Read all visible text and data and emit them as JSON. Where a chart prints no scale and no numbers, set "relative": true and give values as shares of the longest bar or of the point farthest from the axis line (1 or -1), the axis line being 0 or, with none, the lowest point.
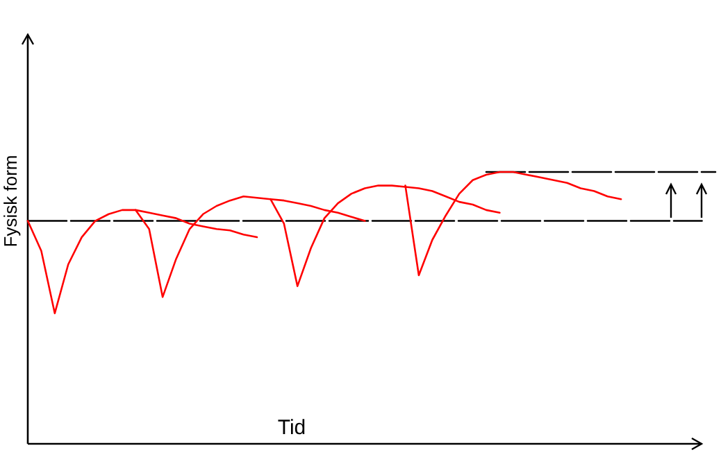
{
  "chart_data": {
    "type": "line",
    "xlabel": "Tid",
    "ylabel": "Fysisk form",
    "relative": true,
    "marker": "none",
    "categories": [
      null,
      null,
      null,
      null,
      null,
      null,
      null,
      null,
      null,
      null,
      null,
      null,
      null,
      null,
      null,
      null,
      null,
      null,
      null,
      null,
      null,
      null,
      null,
      null,
      null,
      null,
      null,
      null,
      null,
      null,
      null,
      null,
      null,
      null,
      null,
      null,
      null,
      null,
      null,
      null,
      null,
      null,
      null,
      null,
      null,
      null,
      null,
      null,
      null,
      null,
      null,
      null
    ],
    "series": [
      {
        "color": "#000000",
        "line_style": "dashed",
        "values": [
          0.82,
          0.82,
          0.82,
          0.82,
          0.82,
          0.82,
          0.82,
          0.82,
          0.82,
          0.82,
          0.82,
          0.82,
          0.82,
          0.82,
          0.82,
          0.82,
          0.82,
          0.82,
          0.82,
          0.82,
          0.82,
          0.82,
          0.82,
          0.82,
          0.82,
          0.82,
          0.82,
          0.82,
          0.82,
          0.82,
          0.82,
          0.82,
          0.82,
          0.82,
          0.82,
          0.82,
          0.82,
          0.82,
          0.82,
          0.82,
          0.82,
          0.82,
          0.82,
          0.82,
          0.82,
          0.82,
          0.82,
          0.82,
          0.82,
          0.82,
          0.82,
          null
        ]
      },
      {
        "color": "#000000",
        "line_style": "dashed",
        "values": [
          null,
          null,
          null,
          null,
          null,
          null,
          null,
          null,
          null,
          null,
          null,
          null,
          null,
          null,
          null,
          null,
          null,
          null,
          null,
          null,
          null,
          null,
          null,
          null,
          null,
          null,
          null,
          null,
          null,
          null,
          null,
          null,
          null,
          null,
          1.0,
          1.0,
          1.0,
          1.0,
          1.0,
          1.0,
          1.0,
          1.0,
          1.0,
          1.0,
          1.0,
          1.0,
          1.0,
          1.0,
          1.0,
          1.0,
          1.0,
          1.0
        ]
      },
      {
        "color": "#ff0000",
        "line_style": "solid",
        "values": [
          0.82,
          0.71,
          0.48,
          0.66,
          0.76,
          0.82,
          0.845,
          0.86,
          0.86,
          0.85,
          0.84,
          0.83,
          0.81,
          0.8,
          0.79,
          0.785,
          0.77,
          0.76,
          null,
          null,
          null,
          null,
          null,
          null,
          null,
          null,
          null,
          null,
          null,
          null,
          null,
          null,
          null,
          null,
          null,
          null,
          null,
          null,
          null,
          null,
          null,
          null,
          null,
          null,
          null,
          null,
          null,
          null,
          null,
          null,
          null,
          null
        ]
      },
      {
        "color": "#ff0000",
        "line_style": "solid",
        "values": [
          null,
          null,
          null,
          null,
          null,
          null,
          null,
          null,
          0.86,
          0.79,
          0.54,
          0.68,
          0.79,
          0.845,
          0.875,
          0.895,
          0.91,
          0.905,
          0.9,
          0.895,
          0.885,
          0.875,
          0.86,
          0.85,
          0.835,
          0.82,
          null,
          null,
          null,
          null,
          null,
          null,
          null,
          null,
          null,
          null,
          null,
          null,
          null,
          null,
          null,
          null,
          null,
          null,
          null,
          null,
          null,
          null,
          null,
          null,
          null,
          null
        ]
      },
      {
        "color": "#ff0000",
        "line_style": "solid",
        "values": [
          null,
          null,
          null,
          null,
          null,
          null,
          null,
          null,
          null,
          null,
          null,
          null,
          null,
          null,
          null,
          null,
          null,
          null,
          0.9,
          0.81,
          0.58,
          0.72,
          0.83,
          0.885,
          0.92,
          0.94,
          0.95,
          0.95,
          0.945,
          0.94,
          0.93,
          0.91,
          0.89,
          0.88,
          0.86,
          0.85,
          null,
          null,
          null,
          null,
          null,
          null,
          null,
          null,
          null,
          null,
          null,
          null,
          null,
          null,
          null,
          null
        ]
      },
      {
        "color": "#ff0000",
        "line_style": "solid",
        "values": [
          null,
          null,
          null,
          null,
          null,
          null,
          null,
          null,
          null,
          null,
          null,
          null,
          null,
          null,
          null,
          null,
          null,
          null,
          null,
          null,
          null,
          null,
          null,
          null,
          null,
          null,
          null,
          null,
          0.95,
          0.62,
          0.75,
          0.84,
          0.92,
          0.97,
          0.99,
          1.0,
          1.0,
          0.99,
          0.98,
          0.97,
          0.96,
          0.94,
          0.93,
          0.91,
          0.9,
          null,
          null,
          null,
          null,
          null,
          null,
          null
        ]
      }
    ]
  }
}
